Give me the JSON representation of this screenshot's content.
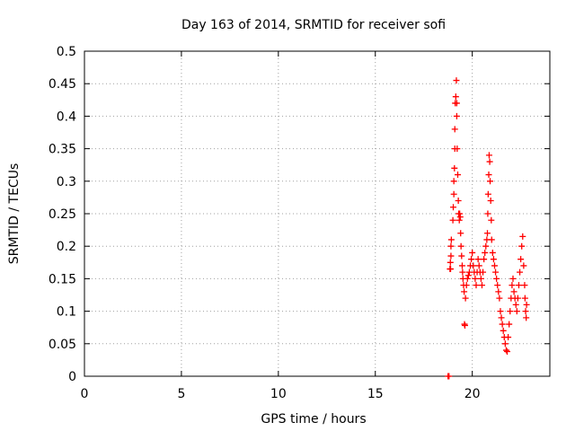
{
  "chart_data": {
    "type": "scatter",
    "title": "Day 163 of 2014, SRMTID for receiver sofi",
    "xlabel": "GPS time / hours",
    "ylabel": "SRMTID / TECUs",
    "xlim": [
      0,
      24
    ],
    "ylim": [
      0,
      0.5
    ],
    "xticks": [
      0,
      5,
      10,
      15,
      20
    ],
    "yticks": [
      0,
      0.05,
      0.1,
      0.15,
      0.2,
      0.25,
      0.3,
      0.35,
      0.4,
      0.45,
      0.5
    ],
    "xtick_labels": [
      "0",
      "5",
      "10",
      "15",
      "20"
    ],
    "ytick_labels": [
      "0",
      "0.05",
      "0.1",
      "0.15",
      "0.2",
      "0.25",
      "0.3",
      "0.35",
      "0.4",
      "0.45",
      "0.5"
    ],
    "grid": true,
    "marker": "+",
    "series": [
      {
        "name": "SRMTID",
        "color": "#ff0000",
        "points": [
          [
            18.75,
            0.0
          ],
          [
            18.8,
            0.0
          ],
          [
            18.85,
            0.165
          ],
          [
            18.87,
            0.175
          ],
          [
            18.9,
            0.185
          ],
          [
            18.9,
            0.2
          ],
          [
            18.92,
            0.21
          ],
          [
            18.88,
            0.165
          ],
          [
            19.0,
            0.24
          ],
          [
            19.02,
            0.26
          ],
          [
            19.05,
            0.28
          ],
          [
            19.05,
            0.3
          ],
          [
            19.08,
            0.32
          ],
          [
            19.1,
            0.35
          ],
          [
            19.1,
            0.38
          ],
          [
            19.12,
            0.42
          ],
          [
            19.15,
            0.43
          ],
          [
            19.18,
            0.455
          ],
          [
            19.2,
            0.42
          ],
          [
            19.2,
            0.4
          ],
          [
            19.22,
            0.35
          ],
          [
            19.25,
            0.31
          ],
          [
            19.28,
            0.27
          ],
          [
            19.3,
            0.25
          ],
          [
            19.33,
            0.24
          ],
          [
            19.35,
            0.25
          ],
          [
            19.38,
            0.245
          ],
          [
            19.4,
            0.22
          ],
          [
            19.42,
            0.2
          ],
          [
            19.45,
            0.185
          ],
          [
            19.48,
            0.17
          ],
          [
            19.5,
            0.16
          ],
          [
            19.52,
            0.15
          ],
          [
            19.55,
            0.14
          ],
          [
            19.58,
            0.13
          ],
          [
            19.6,
            0.08
          ],
          [
            19.62,
            0.078
          ],
          [
            19.65,
            0.12
          ],
          [
            19.7,
            0.14
          ],
          [
            19.75,
            0.15
          ],
          [
            19.8,
            0.155
          ],
          [
            19.85,
            0.16
          ],
          [
            19.9,
            0.17
          ],
          [
            19.95,
            0.18
          ],
          [
            20.0,
            0.19
          ],
          [
            20.05,
            0.17
          ],
          [
            20.1,
            0.16
          ],
          [
            20.15,
            0.15
          ],
          [
            20.2,
            0.14
          ],
          [
            20.25,
            0.16
          ],
          [
            20.3,
            0.18
          ],
          [
            20.35,
            0.17
          ],
          [
            20.4,
            0.16
          ],
          [
            20.45,
            0.15
          ],
          [
            20.5,
            0.14
          ],
          [
            20.55,
            0.16
          ],
          [
            20.6,
            0.18
          ],
          [
            20.65,
            0.19
          ],
          [
            20.7,
            0.2
          ],
          [
            20.75,
            0.21
          ],
          [
            20.78,
            0.22
          ],
          [
            20.8,
            0.25
          ],
          [
            20.82,
            0.28
          ],
          [
            20.85,
            0.31
          ],
          [
            20.87,
            0.34
          ],
          [
            20.9,
            0.33
          ],
          [
            20.92,
            0.3
          ],
          [
            20.95,
            0.27
          ],
          [
            20.98,
            0.24
          ],
          [
            21.0,
            0.21
          ],
          [
            21.05,
            0.19
          ],
          [
            21.1,
            0.18
          ],
          [
            21.15,
            0.17
          ],
          [
            21.2,
            0.16
          ],
          [
            21.25,
            0.15
          ],
          [
            21.3,
            0.14
          ],
          [
            21.35,
            0.13
          ],
          [
            21.4,
            0.12
          ],
          [
            21.45,
            0.1
          ],
          [
            21.5,
            0.09
          ],
          [
            21.55,
            0.08
          ],
          [
            21.6,
            0.07
          ],
          [
            21.65,
            0.06
          ],
          [
            21.7,
            0.05
          ],
          [
            21.75,
            0.04
          ],
          [
            21.8,
            0.038
          ],
          [
            21.85,
            0.06
          ],
          [
            21.9,
            0.08
          ],
          [
            21.95,
            0.1
          ],
          [
            22.0,
            0.12
          ],
          [
            22.05,
            0.14
          ],
          [
            22.1,
            0.15
          ],
          [
            22.15,
            0.13
          ],
          [
            22.2,
            0.12
          ],
          [
            22.25,
            0.11
          ],
          [
            22.3,
            0.1
          ],
          [
            22.35,
            0.12
          ],
          [
            22.4,
            0.14
          ],
          [
            22.45,
            0.16
          ],
          [
            22.5,
            0.18
          ],
          [
            22.55,
            0.2
          ],
          [
            22.6,
            0.215
          ],
          [
            22.65,
            0.17
          ],
          [
            22.7,
            0.14
          ],
          [
            22.72,
            0.12
          ],
          [
            22.75,
            0.1
          ],
          [
            22.78,
            0.09
          ],
          [
            22.8,
            0.11
          ]
        ]
      }
    ]
  }
}
